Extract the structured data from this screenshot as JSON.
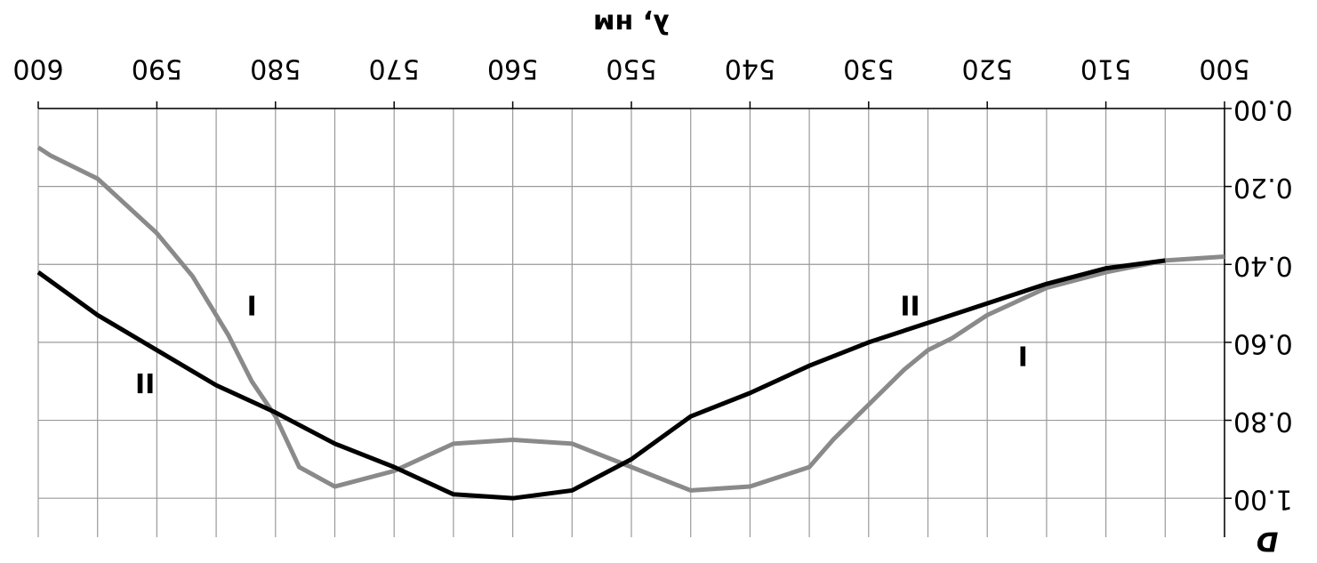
{
  "chart_data": {
    "type": "line",
    "x_label": "λ, нм",
    "y_label": "D",
    "xlim": [
      500,
      600
    ],
    "xticks": [
      500,
      510,
      520,
      530,
      540,
      550,
      560,
      570,
      580,
      590,
      600
    ],
    "xgrid": [
      500,
      505,
      510,
      515,
      520,
      525,
      530,
      535,
      540,
      545,
      550,
      555,
      560,
      565,
      570,
      575,
      580,
      585,
      590,
      595,
      600
    ],
    "ylim": [
      0,
      1.1
    ],
    "yticks": [
      {
        "value": 0,
        "label": "0.00"
      },
      {
        "value": 0.2,
        "label": "0.20"
      },
      {
        "value": 0.4,
        "label": "0.40"
      },
      {
        "value": 0.6,
        "label": "0.60"
      },
      {
        "value": 0.8,
        "label": "0.80"
      },
      {
        "value": 1.0,
        "label": "1.00"
      }
    ],
    "grid": true,
    "rotation": 180,
    "series": [
      {
        "name": "I",
        "color": "#8a8a8a",
        "x": [
          500,
          505,
          510,
          515,
          520,
          523,
          525,
          527,
          530,
          533,
          535,
          540,
          545,
          550,
          555,
          560,
          565,
          570,
          575,
          578,
          580,
          582,
          584,
          587,
          590,
          595,
          599,
          600
        ],
        "values": [
          0.38,
          0.39,
          0.42,
          0.46,
          0.53,
          0.59,
          0.62,
          0.67,
          0.76,
          0.85,
          0.92,
          0.97,
          0.98,
          0.92,
          0.86,
          0.85,
          0.86,
          0.93,
          0.97,
          0.92,
          0.79,
          0.7,
          0.58,
          0.43,
          0.32,
          0.18,
          0.12,
          0.1
        ]
      },
      {
        "name": "II",
        "color": "#000000",
        "x": [
          505,
          510,
          515,
          520,
          522,
          525,
          530,
          535,
          540,
          545,
          550,
          555,
          560,
          565,
          570,
          575,
          580,
          585,
          590,
          595,
          600
        ],
        "values": [
          0.39,
          0.41,
          0.45,
          0.5,
          0.52,
          0.55,
          0.6,
          0.66,
          0.73,
          0.79,
          0.9,
          0.98,
          1.0,
          0.99,
          0.92,
          0.86,
          0.78,
          0.71,
          0.62,
          0.53,
          0.42
        ]
      }
    ],
    "annotations": [
      {
        "text": "I",
        "x": 582,
        "y": 0.5
      },
      {
        "text": "II",
        "x": 591,
        "y": 0.7
      },
      {
        "text": "II",
        "x": 526.5,
        "y": 0.5
      },
      {
        "text": "I",
        "x": 517,
        "y": 0.63
      }
    ]
  }
}
